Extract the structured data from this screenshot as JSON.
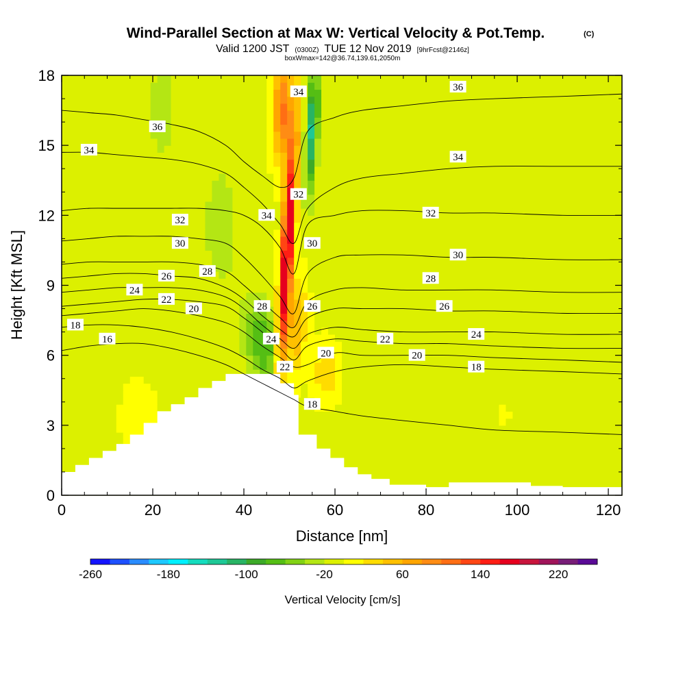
{
  "titles": {
    "main": "Wind-Parallel Section at Max W: Vertical Velocity & Pot.Temp.",
    "copyright": "(C)",
    "valid_prefix": "Valid 1200 JST",
    "valid_utc": "(0300Z)",
    "valid_date": "TUE 12 Nov 2019",
    "forecast": "[9hrFcst@2146z]",
    "box": "boxWmax=142@36.74,139.61,2050m"
  },
  "chart_data": {
    "type": "contour-section",
    "xlabel": "Distance [nm]",
    "ylabel": "Height [Kft MSL]",
    "xlim": [
      0,
      123
    ],
    "ylim": [
      0,
      18
    ],
    "x_ticks": [
      0,
      20,
      40,
      60,
      80,
      100,
      120
    ],
    "y_ticks": [
      0,
      3,
      6,
      9,
      12,
      15,
      18
    ],
    "colorbar": {
      "label": "Vertical Velocity [cm/s]",
      "min": -260,
      "max": 260,
      "step": 20,
      "tick_values": [
        -260,
        -180,
        -100,
        -20,
        60,
        140,
        220
      ],
      "tick_labels": [
        "-260",
        "-180",
        "-100",
        "-20",
        "60",
        "140",
        "220"
      ],
      "colors": [
        "#1414ff",
        "#1e50ff",
        "#2a8cff",
        "#1ec8ff",
        "#00f0ff",
        "#14dcbe",
        "#1ec896",
        "#28b464",
        "#3caa28",
        "#55be14",
        "#82d214",
        "#b4e614",
        "#dcf000",
        "#ffff00",
        "#ffdc00",
        "#ffc000",
        "#ffa500",
        "#ff8c14",
        "#ff6e14",
        "#ff4614",
        "#ff1e14",
        "#e6001e",
        "#c8143c",
        "#a0145a",
        "#781e78",
        "#5a0a96"
      ]
    },
    "background_w": -5,
    "features": [
      {
        "name": "updraft-core",
        "x": 49.5,
        "y": 10.5,
        "sx": 1.3,
        "sy": 5.0,
        "tilt": 0.3,
        "w": 210
      },
      {
        "name": "updraft-top",
        "x": 48.5,
        "y": 16.5,
        "sx": 2.2,
        "sy": 2.2,
        "tilt": 0,
        "w": 110
      },
      {
        "name": "updraft-upper-flank",
        "x": 51.5,
        "y": 7.2,
        "sx": 2.0,
        "sy": 2.0,
        "tilt": 0.3,
        "w": 65
      },
      {
        "name": "updraft-low-flank",
        "x": 58,
        "y": 5.3,
        "sx": 2.8,
        "sy": 1.2,
        "tilt": 0,
        "w": 45
      },
      {
        "name": "downdraft-east",
        "x": 55,
        "y": 15.8,
        "sx": 1.3,
        "sy": 2.8,
        "tilt": 0.25,
        "w": -120
      },
      {
        "name": "downdraft-lee",
        "x": 44,
        "y": 6.5,
        "sx": 3.5,
        "sy": 1.8,
        "tilt": -0.6,
        "w": -75
      },
      {
        "name": "downdraft-upper-west",
        "x": 35,
        "y": 11.5,
        "sx": 5,
        "sy": 3.5,
        "tilt": 0,
        "w": -22
      },
      {
        "name": "downdraft-top-west",
        "x": 22,
        "y": 16.5,
        "sx": 3,
        "sy": 2,
        "tilt": 0,
        "w": -30
      },
      {
        "name": "updraft-weak-west",
        "x": 17,
        "y": 3.2,
        "sx": 3.5,
        "sy": 1.5,
        "tilt": 0,
        "w": 25
      },
      {
        "name": "downdraft-far-east",
        "x": 93,
        "y": 9,
        "sx": 18,
        "sy": 9,
        "tilt": 0,
        "w": -6
      },
      {
        "name": "updraft-weak-east",
        "x": 97,
        "y": 3.5,
        "sx": 4,
        "sy": 1.5,
        "tilt": 0,
        "w": 10
      }
    ],
    "terrain": {
      "x": [
        0,
        3,
        6,
        9,
        12,
        15,
        18,
        21,
        24,
        27,
        30,
        33,
        36,
        39,
        42,
        45,
        48,
        51,
        52,
        56,
        59,
        62,
        65,
        68,
        72,
        80,
        85,
        95,
        103,
        110,
        123
      ],
      "height": [
        1.0,
        1.3,
        1.6,
        1.9,
        2.2,
        2.6,
        3.1,
        3.6,
        3.9,
        4.2,
        4.6,
        4.9,
        5.2,
        5.2,
        5.2,
        5.2,
        4.8,
        4.3,
        2.6,
        2.0,
        1.6,
        1.2,
        0.9,
        0.7,
        0.45,
        0.35,
        0.55,
        0.55,
        0.4,
        0.35,
        0.35
      ]
    },
    "isentropes": [
      {
        "label": "16",
        "y": [
          6.2,
          6.4,
          6.5,
          6.5,
          6.3,
          6.0,
          5.6,
          5.2,
          4.8,
          4.4,
          4.1,
          3.8,
          3.6,
          3.4,
          3.2,
          3.0,
          2.8,
          2.7,
          2.6
        ]
      },
      {
        "label": "18",
        "y": [
          7.2,
          7.3,
          7.3,
          7.2,
          7.0,
          6.7,
          6.3,
          5.9,
          5.4,
          5.0,
          4.6,
          4.9,
          5.3,
          5.5,
          5.6,
          5.5,
          5.4,
          5.3,
          5.2
        ]
      },
      {
        "label": "20",
        "y": [
          7.7,
          7.8,
          7.9,
          8.0,
          7.9,
          7.7,
          7.4,
          7.0,
          6.4,
          5.9,
          5.5,
          5.6,
          6.1,
          6.0,
          6.0,
          6.0,
          5.9,
          5.8,
          5.7
        ]
      },
      {
        "label": "22",
        "y": [
          8.1,
          8.2,
          8.3,
          8.4,
          8.4,
          8.3,
          8.1,
          7.6,
          7.0,
          6.3,
          5.8,
          6.4,
          6.7,
          6.6,
          6.5,
          6.5,
          6.4,
          6.3,
          6.3
        ]
      },
      {
        "label": "24",
        "y": [
          8.7,
          8.8,
          8.9,
          8.9,
          8.9,
          8.8,
          8.5,
          8.0,
          7.3,
          6.7,
          6.3,
          6.9,
          7.2,
          7.1,
          7.0,
          7.0,
          7.0,
          6.9,
          6.9
        ]
      },
      {
        "label": "26",
        "y": [
          9.3,
          9.4,
          9.5,
          9.5,
          9.4,
          9.3,
          8.9,
          8.4,
          7.7,
          7.1,
          6.8,
          7.6,
          8.0,
          8.0,
          8.0,
          7.9,
          7.9,
          7.8,
          7.8
        ]
      },
      {
        "label": "28",
        "y": [
          9.9,
          10.0,
          10.0,
          10.0,
          10.0,
          9.9,
          9.6,
          9.0,
          8.3,
          7.6,
          7.2,
          8.3,
          8.8,
          8.9,
          8.8,
          8.8,
          8.8,
          8.7,
          8.7
        ]
      },
      {
        "label": "30",
        "y": [
          10.9,
          11.0,
          11.1,
          11.1,
          11.1,
          11.0,
          10.8,
          10.2,
          9.4,
          8.5,
          7.8,
          9.5,
          10.2,
          10.3,
          10.3,
          10.2,
          10.2,
          10.1,
          10.1
        ]
      },
      {
        "label": "32",
        "y": [
          12.2,
          12.3,
          12.3,
          12.3,
          12.3,
          12.3,
          12.2,
          12.0,
          11.5,
          10.6,
          9.5,
          11.6,
          12.0,
          12.2,
          12.2,
          12.1,
          12.1,
          12.0,
          12.0
        ]
      },
      {
        "label": "34",
        "y": [
          14.7,
          14.7,
          14.6,
          14.5,
          14.4,
          14.2,
          13.8,
          13.2,
          12.5,
          11.6,
          10.8,
          12.3,
          13.2,
          13.6,
          13.8,
          14.0,
          14.1,
          14.1,
          14.1
        ]
      },
      {
        "label": "36",
        "y": [
          16.5,
          16.4,
          16.3,
          16.1,
          15.9,
          15.6,
          15.0,
          14.3,
          13.7,
          13.2,
          13.6,
          15.6,
          16.2,
          16.5,
          16.7,
          16.9,
          17.0,
          17.1,
          17.2
        ]
      }
    ],
    "isentrope_x": [
      0,
      6,
      12,
      18,
      24,
      30,
      36,
      40,
      44,
      48,
      51,
      54,
      60,
      66,
      75,
      85,
      95,
      110,
      123
    ],
    "contour_labels": [
      {
        "text": "16",
        "x": 10,
        "y": 6.7
      },
      {
        "text": "18",
        "x": 3,
        "y": 7.3
      },
      {
        "text": "24",
        "x": 16,
        "y": 8.8
      },
      {
        "text": "22",
        "x": 23,
        "y": 8.4
      },
      {
        "text": "20",
        "x": 29,
        "y": 8.0
      },
      {
        "text": "26",
        "x": 23,
        "y": 9.4
      },
      {
        "text": "28",
        "x": 32,
        "y": 9.6
      },
      {
        "text": "30",
        "x": 26,
        "y": 10.8
      },
      {
        "text": "32",
        "x": 26,
        "y": 11.8
      },
      {
        "text": "34",
        "x": 6,
        "y": 14.8
      },
      {
        "text": "36",
        "x": 21,
        "y": 15.8
      },
      {
        "text": "34",
        "x": 45,
        "y": 12.0
      },
      {
        "text": "28",
        "x": 44,
        "y": 8.1
      },
      {
        "text": "24",
        "x": 46,
        "y": 6.7
      },
      {
        "text": "22",
        "x": 49,
        "y": 5.5
      },
      {
        "text": "32",
        "x": 52,
        "y": 12.9
      },
      {
        "text": "34",
        "x": 52,
        "y": 17.3
      },
      {
        "text": "30",
        "x": 55,
        "y": 10.8
      },
      {
        "text": "26",
        "x": 55,
        "y": 8.1
      },
      {
        "text": "20",
        "x": 58,
        "y": 6.1
      },
      {
        "text": "18",
        "x": 55,
        "y": 3.9
      },
      {
        "text": "36",
        "x": 87,
        "y": 17.5
      },
      {
        "text": "34",
        "x": 87,
        "y": 14.5
      },
      {
        "text": "32",
        "x": 81,
        "y": 12.1
      },
      {
        "text": "30",
        "x": 87,
        "y": 10.3
      },
      {
        "text": "28",
        "x": 81,
        "y": 9.3
      },
      {
        "text": "26",
        "x": 84,
        "y": 8.1
      },
      {
        "text": "24",
        "x": 91,
        "y": 6.9
      },
      {
        "text": "22",
        "x": 71,
        "y": 6.7
      },
      {
        "text": "20",
        "x": 78,
        "y": 6.0
      },
      {
        "text": "18",
        "x": 91,
        "y": 5.5
      }
    ]
  }
}
